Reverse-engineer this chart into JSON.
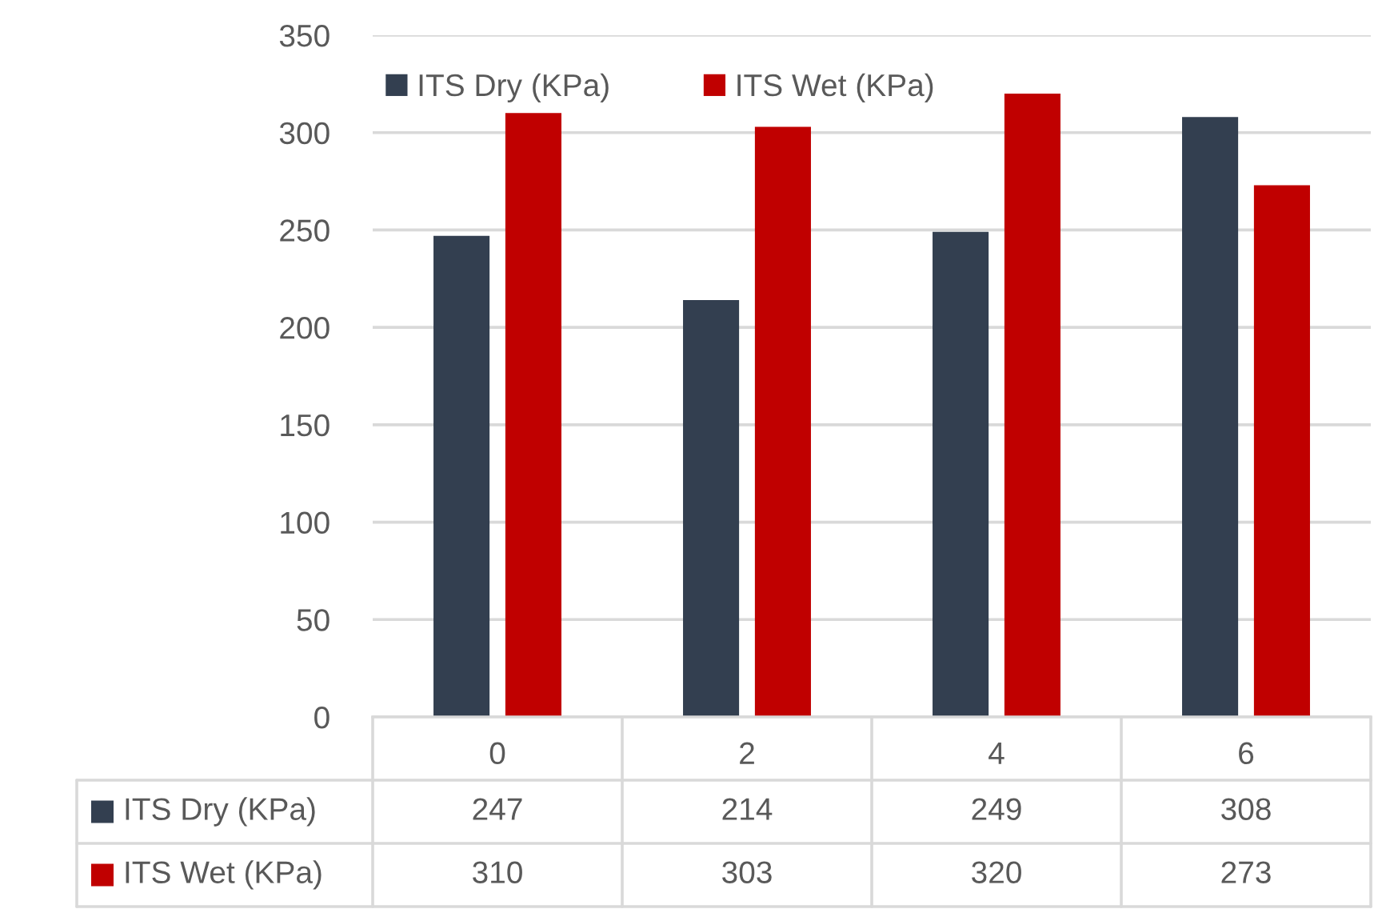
{
  "chart_data": {
    "type": "bar",
    "categories": [
      "0",
      "2",
      "4",
      "6"
    ],
    "series": [
      {
        "name": "ITS Dry (KPa)",
        "color": "#333f50",
        "values": [
          247,
          214,
          249,
          308
        ]
      },
      {
        "name": "ITS Wet (KPa)",
        "color": "#c00000",
        "values": [
          310,
          303,
          320,
          273
        ]
      }
    ],
    "ylim": [
      0,
      350
    ],
    "yticks": [
      0,
      50,
      100,
      150,
      200,
      250,
      300,
      350
    ],
    "grid": "y",
    "legend": "top left",
    "data_labels": true
  }
}
